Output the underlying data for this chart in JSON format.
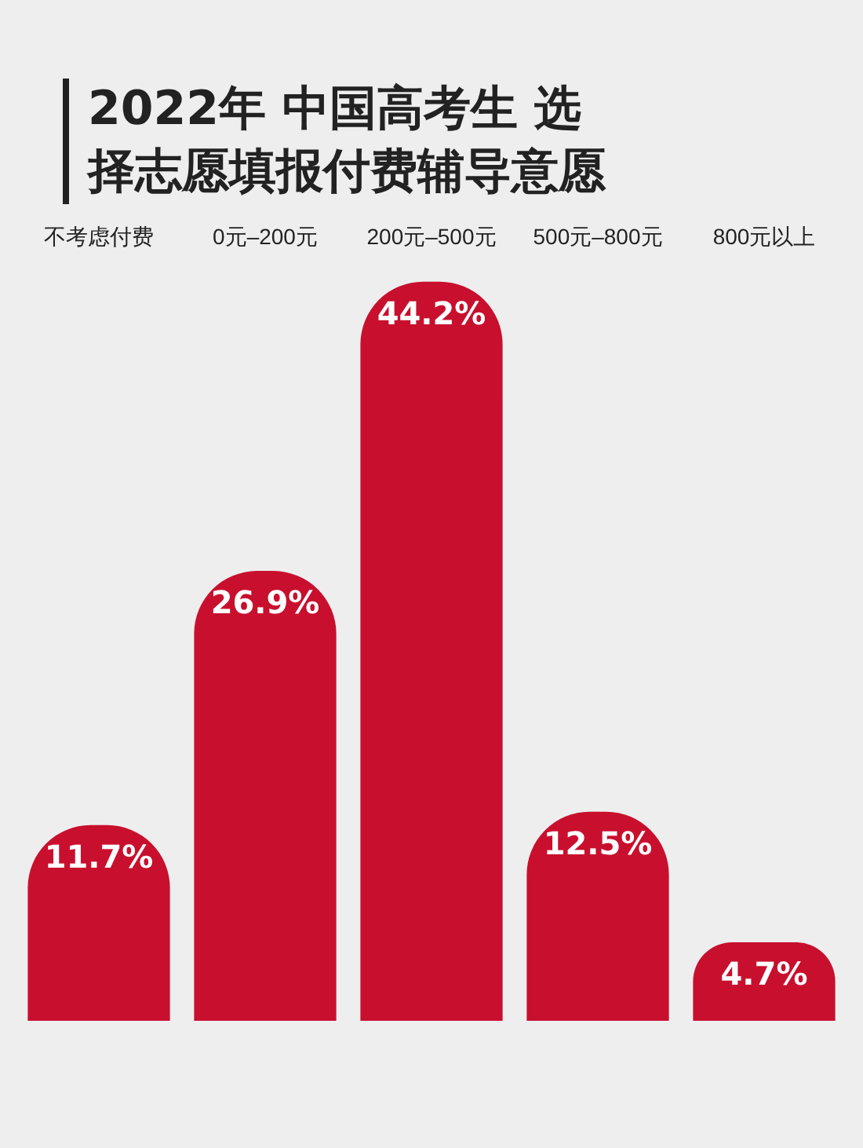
{
  "chart_data": {
    "type": "bar",
    "title": "2022年 中国高考生 选择志愿填报付费辅导意愿",
    "categories": [
      "不考虑付费",
      "0元–200元",
      "200元–500元",
      "500元–800元",
      "800元以上"
    ],
    "values": [
      11.7,
      26.9,
      44.2,
      12.5,
      4.7
    ],
    "value_labels": [
      "11.7%",
      "26.9%",
      "44.2%",
      "12.5%",
      "4.7%"
    ],
    "color": "#c8102e",
    "grid": false,
    "legend": false
  }
}
